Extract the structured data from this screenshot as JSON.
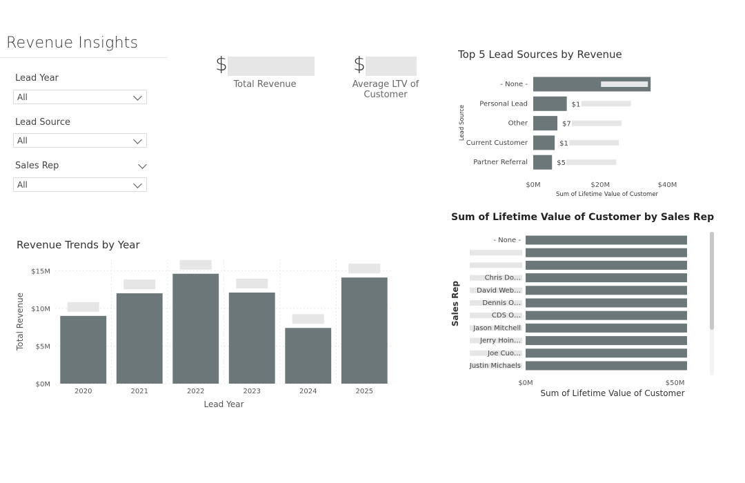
{
  "page": {
    "title": "Revenue Insights"
  },
  "filters": [
    {
      "label": "Lead Year",
      "value": "All"
    },
    {
      "label": "Lead Source",
      "value": "All"
    },
    {
      "label": "Sales Rep",
      "value": "All"
    }
  ],
  "kpis": [
    {
      "prefix": "$",
      "label": "Total Revenue"
    },
    {
      "prefix": "$",
      "label": "Average LTV of Customer"
    }
  ],
  "colors": {
    "bar": "#6b7778",
    "grid": "#e8e8e8",
    "redact": "#e6e6e6"
  },
  "chart_data": [
    {
      "id": "lead_sources",
      "type": "bar",
      "orientation": "horizontal",
      "title": "Top 5 Lead Sources by Revenue",
      "categories": [
        "- None -",
        "Personal Lead",
        "Other",
        "Current Customer",
        "Partner Referral"
      ],
      "values": [
        35,
        10,
        7.2,
        6.4,
        5.6
      ],
      "label_prefixes": [
        "",
        "$1",
        "$7",
        "$1",
        "$5"
      ],
      "xlabel": "Sum of Lifetime Value of Customer",
      "ylabel": "Lead Source",
      "xlim": [
        0,
        44
      ],
      "xticks": [
        "$0M",
        "$20M",
        "$40M"
      ],
      "xtick_values": [
        0,
        20,
        40
      ]
    },
    {
      "id": "revenue_trend",
      "type": "bar",
      "title": "Revenue Trends by Year",
      "categories": [
        "2020",
        "2021",
        "2022",
        "2023",
        "2024",
        "2025"
      ],
      "values": [
        9,
        12,
        14.6,
        12.1,
        7.4,
        14.1
      ],
      "xlabel": "Lead Year",
      "ylabel": "Total Revenue",
      "ylim": [
        0,
        16.5
      ],
      "yticks": [
        "$0M",
        "$5M",
        "$10M",
        "$15M"
      ],
      "ytick_values": [
        0,
        5,
        10,
        15
      ]
    },
    {
      "id": "ltv_by_rep",
      "type": "bar",
      "orientation": "horizontal",
      "title": "Sum of Lifetime Value of Customer by Sales Rep",
      "categories": [
        "- None -",
        "",
        "",
        "Chris Do…",
        "David Web…",
        "Dennis O…",
        "CDS O…",
        "Jason Mitchell",
        "Jerry Hoin…",
        "Joe Cuo…",
        "Justin Michaels"
      ],
      "values": [
        54,
        54,
        54,
        54,
        54,
        54,
        54,
        54,
        54,
        54,
        54
      ],
      "xlabel": "Sum of Lifetime Value of Customer",
      "ylabel": "Sales Rep",
      "xlim": [
        0,
        60
      ],
      "xticks": [
        "$0M",
        "$50M"
      ],
      "xtick_values": [
        0,
        50
      ]
    }
  ]
}
